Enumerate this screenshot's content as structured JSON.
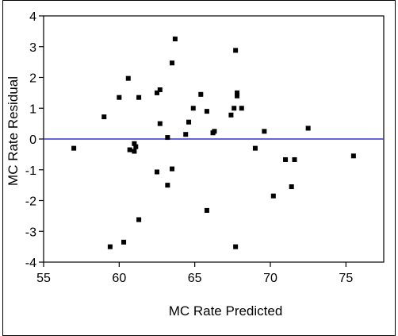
{
  "chart_data": {
    "type": "scatter",
    "title": "",
    "xlabel": "MC Rate Predicted",
    "ylabel": "MC Rate Residual",
    "xlim": [
      55,
      77.5
    ],
    "ylim": [
      -4,
      4
    ],
    "x_ticks": [
      55,
      60,
      65,
      70,
      75
    ],
    "y_ticks": [
      -4,
      -3,
      -2,
      -1,
      0,
      1,
      2,
      3,
      4
    ],
    "x_tick_labels": [
      "55",
      "60",
      "65",
      "70",
      "75"
    ],
    "y_tick_labels": [
      "-4",
      "-3",
      "-2",
      "-1",
      "0",
      "1",
      "2",
      "3",
      "4"
    ],
    "grid": false,
    "reference_line": {
      "y": 0,
      "color": "#3333cc"
    },
    "marker_color": "#000000",
    "points": [
      {
        "x": 57.0,
        "y": -0.3
      },
      {
        "x": 59.0,
        "y": 0.72
      },
      {
        "x": 59.4,
        "y": -3.5
      },
      {
        "x": 60.0,
        "y": 1.35
      },
      {
        "x": 60.3,
        "y": -3.35
      },
      {
        "x": 60.6,
        "y": 1.97
      },
      {
        "x": 60.7,
        "y": -0.35
      },
      {
        "x": 61.0,
        "y": -0.15
      },
      {
        "x": 61.0,
        "y": -0.4
      },
      {
        "x": 61.1,
        "y": -0.25
      },
      {
        "x": 61.3,
        "y": 1.35
      },
      {
        "x": 61.3,
        "y": -2.62
      },
      {
        "x": 62.5,
        "y": 1.5
      },
      {
        "x": 62.5,
        "y": -1.07
      },
      {
        "x": 62.7,
        "y": 1.6
      },
      {
        "x": 62.7,
        "y": 0.5
      },
      {
        "x": 63.2,
        "y": 0.05
      },
      {
        "x": 63.2,
        "y": -1.5
      },
      {
        "x": 63.5,
        "y": 2.47
      },
      {
        "x": 63.5,
        "y": -0.97
      },
      {
        "x": 63.7,
        "y": 3.25
      },
      {
        "x": 64.4,
        "y": 0.15
      },
      {
        "x": 64.6,
        "y": 0.55
      },
      {
        "x": 64.9,
        "y": 1.0
      },
      {
        "x": 65.4,
        "y": 1.45
      },
      {
        "x": 65.8,
        "y": 0.9
      },
      {
        "x": 65.8,
        "y": -2.32
      },
      {
        "x": 66.2,
        "y": 0.2
      },
      {
        "x": 66.3,
        "y": 0.25
      },
      {
        "x": 67.4,
        "y": 0.78
      },
      {
        "x": 67.6,
        "y": 1.0
      },
      {
        "x": 67.7,
        "y": 2.88
      },
      {
        "x": 67.7,
        "y": -3.5
      },
      {
        "x": 67.8,
        "y": 1.4
      },
      {
        "x": 67.8,
        "y": 1.5
      },
      {
        "x": 68.1,
        "y": 1.0
      },
      {
        "x": 69.0,
        "y": -0.3
      },
      {
        "x": 69.6,
        "y": 0.25
      },
      {
        "x": 70.2,
        "y": -1.85
      },
      {
        "x": 71.0,
        "y": -0.67
      },
      {
        "x": 71.4,
        "y": -1.55
      },
      {
        "x": 71.6,
        "y": -0.67
      },
      {
        "x": 72.5,
        "y": 0.35
      },
      {
        "x": 75.5,
        "y": -0.55
      }
    ]
  }
}
